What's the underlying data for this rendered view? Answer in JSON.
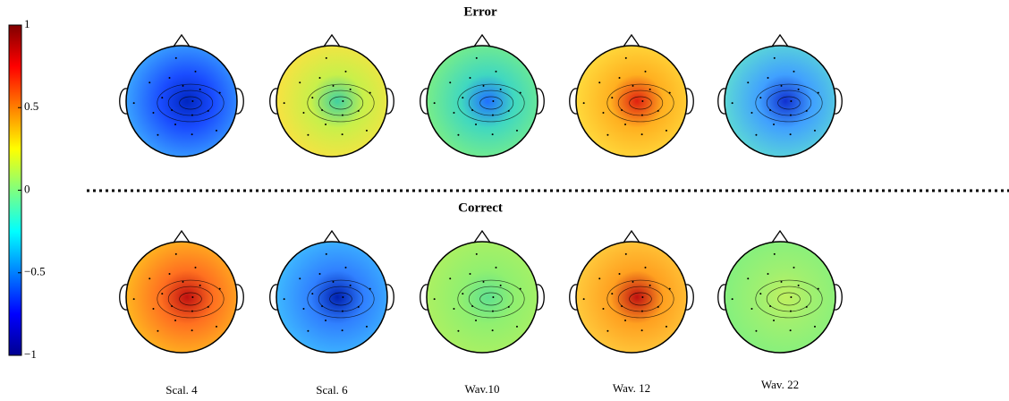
{
  "colorbar": {
    "lim": [
      -1,
      1
    ],
    "ticks": [
      {
        "value": 1,
        "label": "1"
      },
      {
        "value": 0.5,
        "label": "0.5"
      },
      {
        "value": 0,
        "label": "0"
      },
      {
        "value": -0.5,
        "label": "−0.5"
      },
      {
        "value": -1,
        "label": "−1"
      }
    ]
  },
  "rows": [
    {
      "label": "Error",
      "color": "#ff0000"
    },
    {
      "label": "Correct",
      "color": "#0000ff"
    }
  ],
  "columns": [
    "Scal. 4",
    "Scal. 6",
    "Wav.10",
    "Wav. 12",
    "Wav. 22"
  ]
}
